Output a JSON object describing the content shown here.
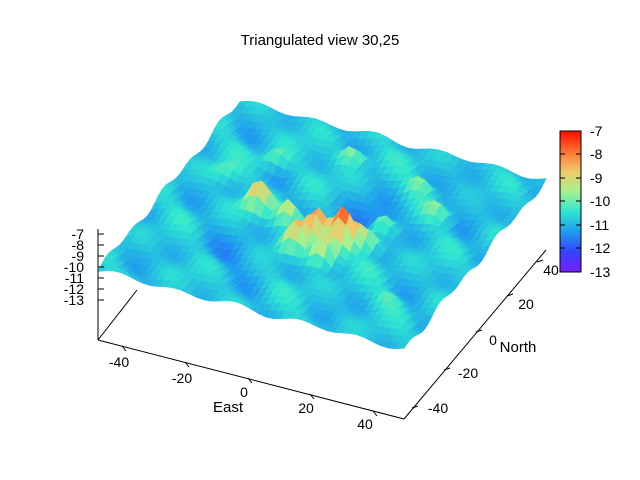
{
  "chart_data": {
    "type": "surface3d",
    "title": "Triangulated view 30,25",
    "xlabel": "East",
    "ylabel": "North",
    "zlabel": "",
    "view": {
      "rot_x": 30,
      "rot_z": 25
    },
    "x_ticks": [
      -40,
      -20,
      0,
      20,
      40
    ],
    "y_ticks": [
      -40,
      -20,
      0,
      20,
      40
    ],
    "z_ticks": [
      -7,
      -8,
      -9,
      -10,
      -11,
      -12,
      -13
    ],
    "xlim": [
      -48,
      48
    ],
    "ylim": [
      -48,
      48
    ],
    "zlim": [
      -13,
      -7
    ],
    "colorbar": {
      "ticks": [
        -7,
        -8,
        -9,
        -10,
        -11,
        -12,
        -13
      ],
      "range": [
        -13,
        -7
      ],
      "palette": [
        "#7a1cff",
        "#3344ff",
        "#1f9bef",
        "#2fe6d1",
        "#a6f28f",
        "#f0c96a",
        "#ff7033",
        "#ff0c00"
      ]
    },
    "peaks": [
      {
        "east": -20,
        "north": 0,
        "z": -8.4
      },
      {
        "east": -9,
        "north": -2,
        "z": -8.6
      },
      {
        "east": 2,
        "north": -8,
        "z": -7.6
      },
      {
        "east": 10,
        "north": -8,
        "z": -7.4
      },
      {
        "east": 8,
        "north": -16,
        "z": -8.2
      },
      {
        "east": -2,
        "north": -14,
        "z": -8.6
      },
      {
        "east": 16,
        "north": -4,
        "z": -8.8
      },
      {
        "east": 16,
        "north": 6,
        "z": -9.4
      },
      {
        "east": -26,
        "north": 24,
        "z": -9.6
      },
      {
        "east": -6,
        "north": 34,
        "z": -9.3
      },
      {
        "east": 18,
        "north": 28,
        "z": -9.7
      },
      {
        "east": 28,
        "north": 18,
        "z": -9.8
      },
      {
        "east": -36,
        "north": 12,
        "z": -9.9
      },
      {
        "east": 34,
        "north": -28,
        "z": -10.2
      }
    ],
    "basins": [
      {
        "east": 10,
        "north": 8,
        "z": -11.6
      },
      {
        "east": -16,
        "north": -22,
        "z": -11.2
      },
      {
        "east": 34,
        "north": 30,
        "z": -11.0
      }
    ],
    "base_level": -10.8
  }
}
